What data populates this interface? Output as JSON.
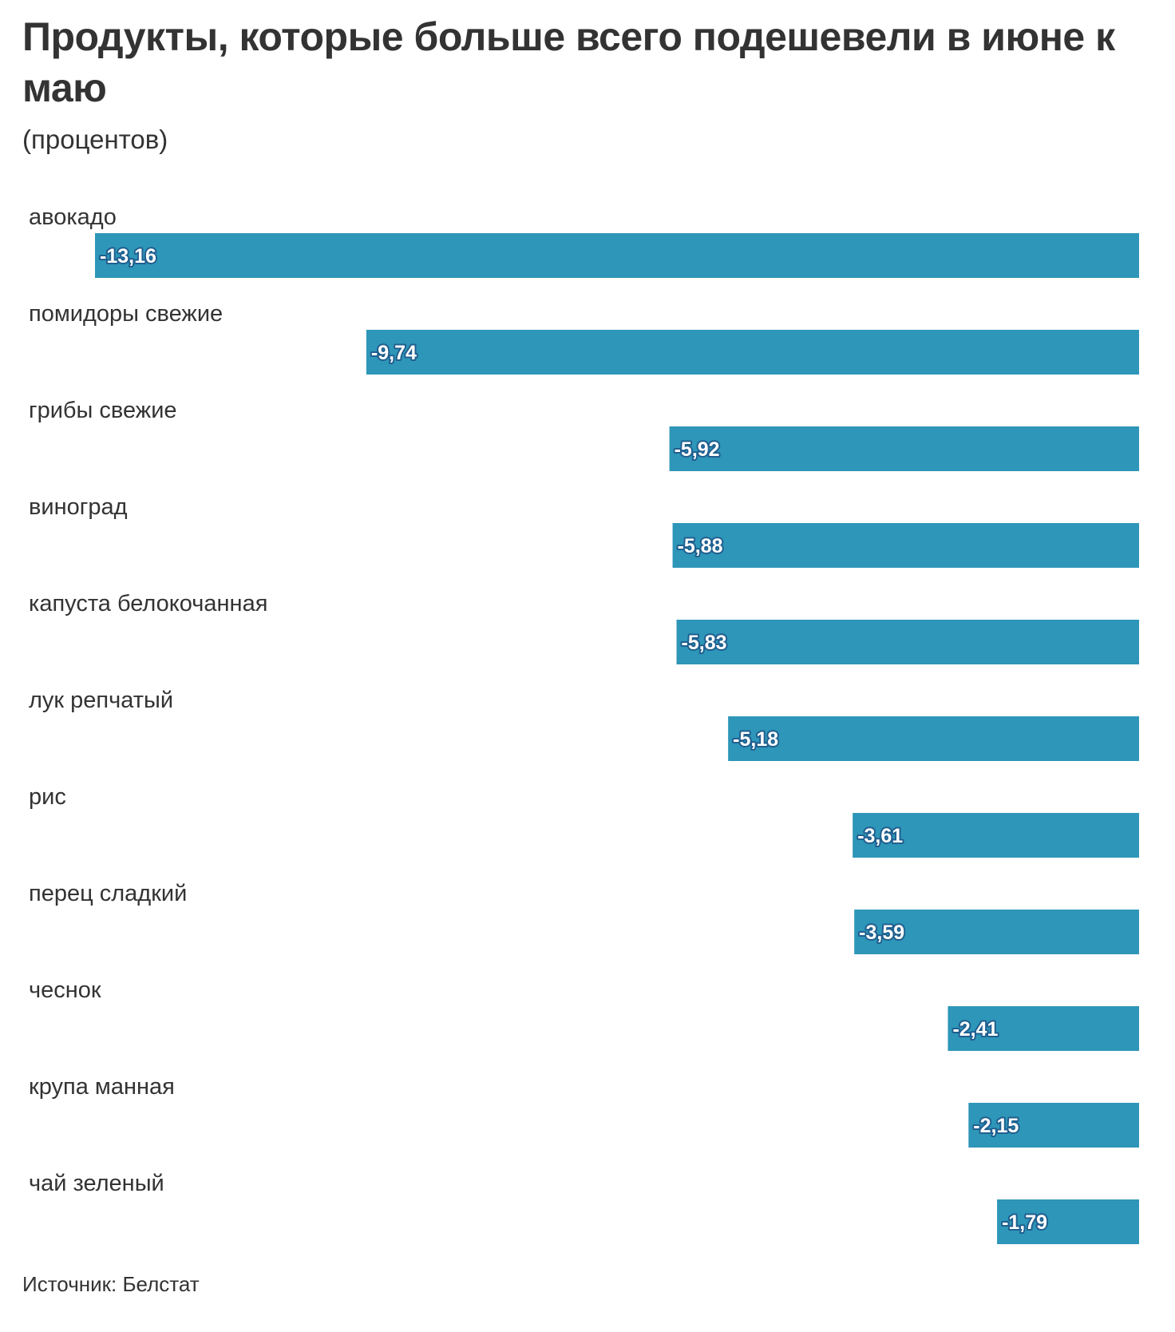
{
  "title": "Продукты, которые больше всего подешевели в июне к маю",
  "subtitle": "(процентов)",
  "source": "Источник: Белстат",
  "colors": {
    "bar": "#2e96b8",
    "label_outline": "#1f5f8f"
  },
  "chart_data": {
    "type": "bar",
    "orientation": "horizontal",
    "categories": [
      "авокадо",
      "помидоры свежие",
      "грибы свежие",
      "виноград",
      "капуста белокочанная",
      "лук репчатый",
      "рис",
      "перец сладкий",
      "чеснок",
      "крупа манная",
      "чай зеленый"
    ],
    "values": [
      -13.16,
      -9.74,
      -5.92,
      -5.88,
      -5.83,
      -5.18,
      -3.61,
      -3.59,
      -2.41,
      -2.15,
      -1.79
    ],
    "value_labels": [
      "-13,16",
      "-9,74",
      "-5,92",
      "-5,88",
      "-5,83",
      "-5,18",
      "-3,61",
      "-3,59",
      "-2,41",
      "-2,15",
      "-1,79"
    ],
    "title": "Продукты, которые больше всего подешевели в июне к маю",
    "subtitle": "(процентов)",
    "xlim": [
      -13.16,
      0
    ],
    "grid": false,
    "legend": "none"
  }
}
